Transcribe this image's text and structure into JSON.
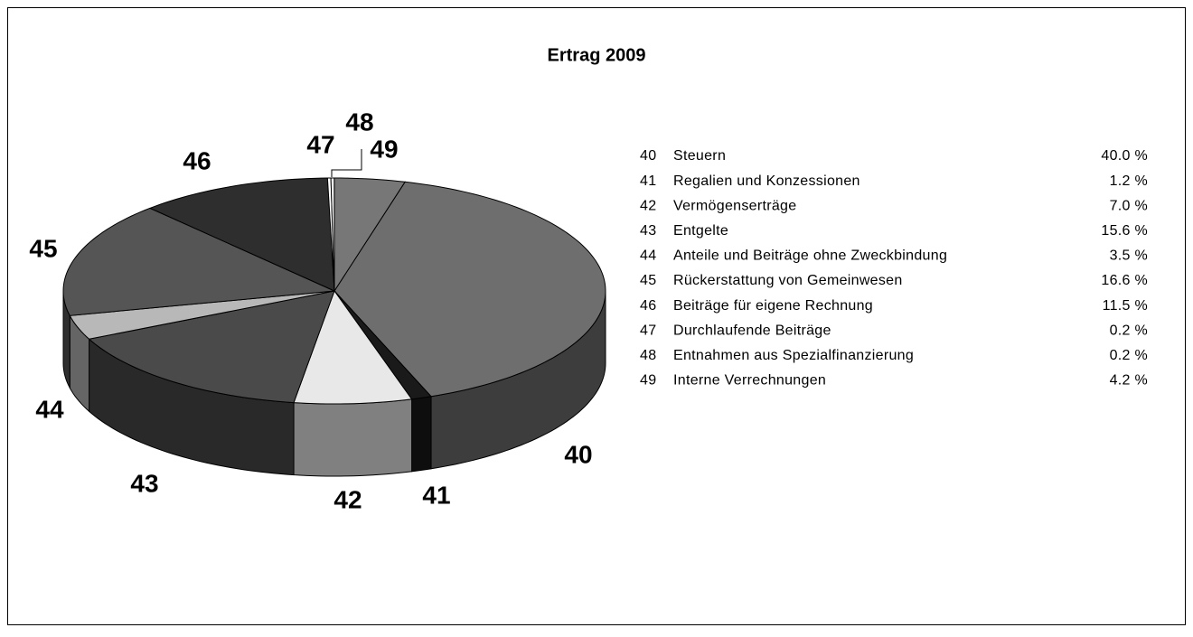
{
  "chart_data": {
    "type": "pie",
    "title": "Ertrag 2009",
    "codes": [
      "40",
      "41",
      "42",
      "43",
      "44",
      "45",
      "46",
      "47",
      "48",
      "49"
    ],
    "categories": [
      "Steuern",
      "Regalien und Konzessionen",
      "Vermögenserträge",
      "Entgelte",
      "Anteile und Beiträge ohne Zweckbindung",
      "Rückerstattung von Gemeinwesen",
      "Beiträge für eigene Rechnung",
      "Durchlaufende Beiträge",
      "Entnahmen aus Spezialfinanzierung",
      "Interne Verrechnungen"
    ],
    "values": [
      40.0,
      1.2,
      7.0,
      15.6,
      3.5,
      16.6,
      11.5,
      0.2,
      0.2,
      4.2
    ],
    "value_labels": [
      "40.0 %",
      "1.2 %",
      "7.0 %",
      "15.6 %",
      "3.5 %",
      "16.6 %",
      "11.5 %",
      "0.2 %",
      "0.2 %",
      "4.2 %"
    ],
    "colors": [
      "#6e6e6e",
      "#1a1a1a",
      "#e8e8e8",
      "#4a4a4a",
      "#b8b8b8",
      "#555555",
      "#2e2e2e",
      "#ffffff",
      "#ffffff",
      "#777777"
    ],
    "legend": "right"
  }
}
